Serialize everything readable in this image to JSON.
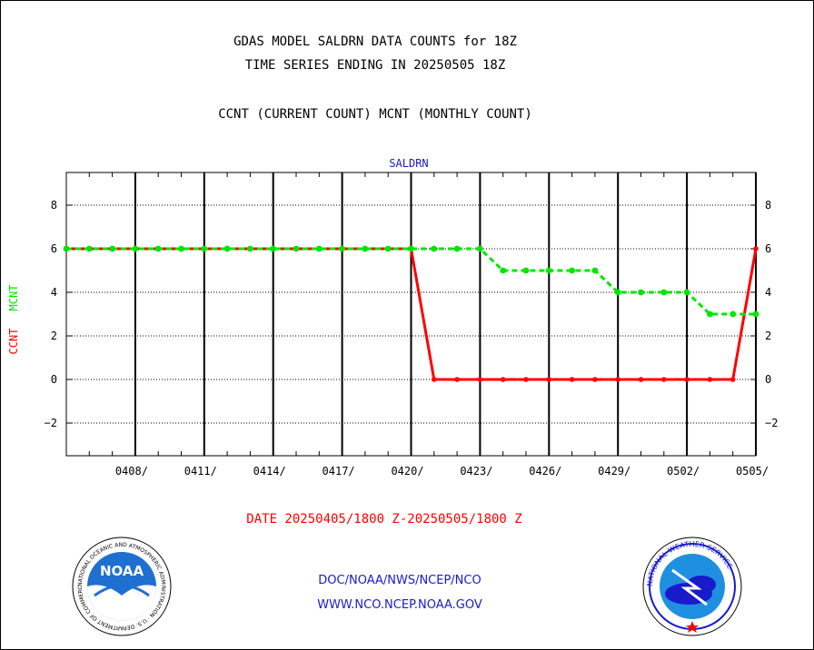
{
  "header": {
    "title": "GDAS MODEL SALDRN DATA COUNTS for 18Z",
    "subtitle": "TIME SERIES ENDING IN 20250505 18Z",
    "description": "CCNT (CURRENT COUNT) MCNT (MONTHLY COUNT)"
  },
  "footer": {
    "date_range": "DATE 20250405/1800 Z-20250505/1800 Z",
    "org_path": "DOC/NOAA/NWS/NCEP/NCO",
    "url": "WWW.NCO.NCEP.NOAA.GOV"
  },
  "logos": {
    "left_text": "NOAA",
    "left_ring_text": "NATIONAL OCEANIC AND ATMOSPHERIC ADMINISTRATION · U.S. DEPARTMENT OF COMMERCE",
    "right_ring_text": "NATIONAL WEATHER SERVICE"
  },
  "colors": {
    "ccnt": "#ff0000",
    "mcnt": "#00e600",
    "title_blue": "#1a1acd"
  },
  "chart_data": {
    "type": "line",
    "title": "SALDRN",
    "ylabel_series": [
      "CCNT",
      "MCNT"
    ],
    "ylim": [
      -3.5,
      9.5
    ],
    "yticks": [
      -2,
      0,
      2,
      4,
      6,
      8
    ],
    "x_tick_labels": [
      "0408/",
      "0411/",
      "0414/",
      "0417/",
      "0420/",
      "0423/",
      "0426/",
      "0429/",
      "0502/",
      "0505/"
    ],
    "grid": true,
    "x_days": [
      "0405",
      "0406",
      "0407",
      "0408",
      "0409",
      "0410",
      "0411",
      "0412",
      "0413",
      "0414",
      "0415",
      "0416",
      "0417",
      "0418",
      "0419",
      "0420",
      "0421",
      "0422",
      "0423",
      "0424",
      "0425",
      "0426",
      "0427",
      "0428",
      "0429",
      "0430",
      "0501",
      "0502",
      "0503",
      "0504",
      "0505"
    ],
    "series": [
      {
        "name": "CCNT",
        "values": [
          6,
          6,
          6,
          6,
          6,
          6,
          6,
          6,
          6,
          6,
          6,
          6,
          6,
          6,
          6,
          6,
          0,
          0,
          0,
          0,
          0,
          0,
          0,
          0,
          0,
          0,
          0,
          0,
          0,
          0,
          6
        ]
      },
      {
        "name": "MCNT",
        "values": [
          6,
          6,
          6,
          6,
          6,
          6,
          6,
          6,
          6,
          6,
          6,
          6,
          6,
          6,
          6,
          6,
          6,
          6,
          6,
          5,
          5,
          5,
          5,
          5,
          4,
          4,
          4,
          4,
          3,
          3,
          3
        ]
      }
    ]
  }
}
